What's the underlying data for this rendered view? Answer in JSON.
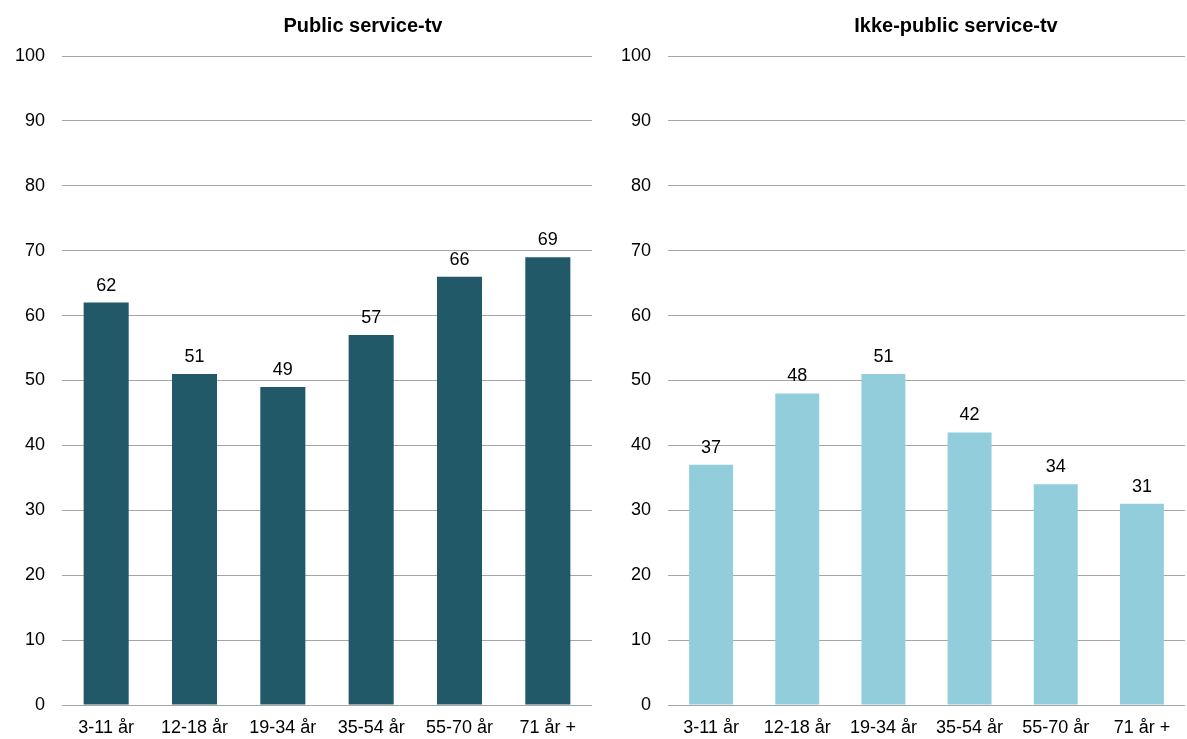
{
  "chart_data": [
    {
      "type": "bar",
      "title": "Public service-tv",
      "categories": [
        "3-11 år",
        "12-18 år",
        "19-34 år",
        "35-54 år",
        "55-70 år",
        "71 år +"
      ],
      "values": [
        62,
        51,
        49,
        57,
        66,
        69
      ],
      "color": "#215968",
      "ylim": [
        0,
        100
      ],
      "yticks": [
        0,
        10,
        20,
        30,
        40,
        50,
        60,
        70,
        80,
        90,
        100
      ],
      "grid": "y",
      "data_labels": true
    },
    {
      "type": "bar",
      "title": "Ikke-public service-tv",
      "categories": [
        "3-11 år",
        "12-18 år",
        "19-34 år",
        "35-54 år",
        "55-70 år",
        "71 år +"
      ],
      "values": [
        37,
        48,
        51,
        42,
        34,
        31
      ],
      "color": "#92cddc",
      "ylim": [
        0,
        100
      ],
      "yticks": [
        0,
        10,
        20,
        30,
        40,
        50,
        60,
        70,
        80,
        90,
        100
      ],
      "grid": "y",
      "data_labels": true
    }
  ]
}
